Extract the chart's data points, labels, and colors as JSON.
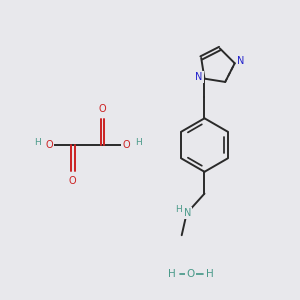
{
  "bg_color": "#e8e8ec",
  "bond_color": "#2a2a2a",
  "N_color": "#2222cc",
  "O_color": "#cc2222",
  "H_color": "#4a9a8a",
  "bond_width": 1.4,
  "dbo": 0.012,
  "fig_w": 3.0,
  "fig_h": 3.0,
  "dpi": 100,
  "xlim": [
    0,
    3.0
  ],
  "ylim": [
    0,
    3.0
  ]
}
